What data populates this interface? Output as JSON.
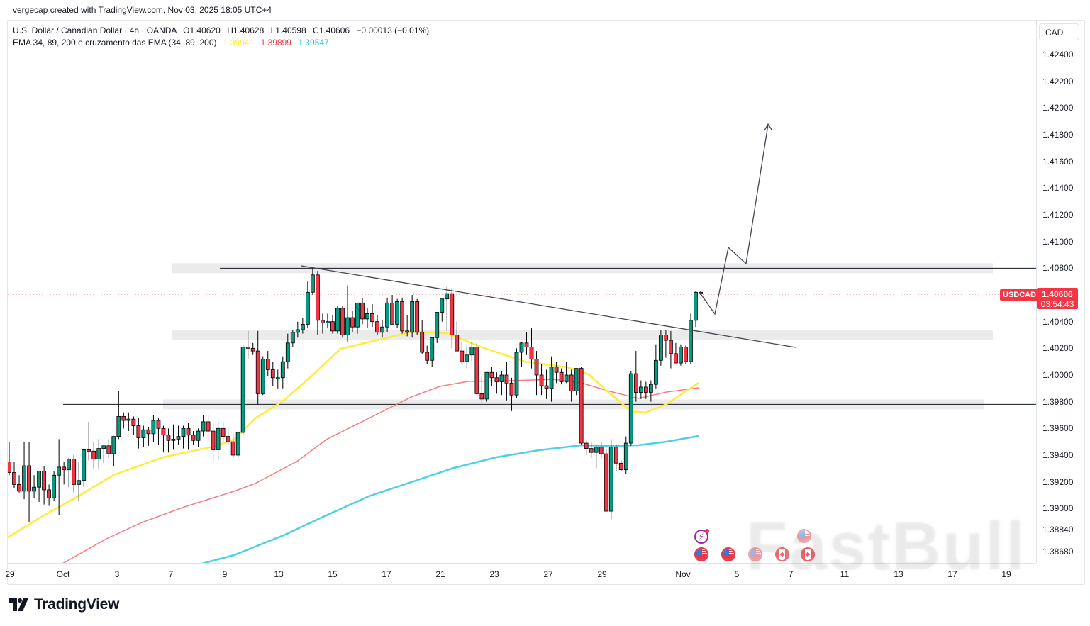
{
  "credit": "vergecap created with TradingView.com, Nov 03, 2025 18:05 UTC+4",
  "legend": {
    "symbol_line": "U.S. Dollar / Canadian Dollar · 4h · OANDA",
    "open_label": "O",
    "open": "1.40620",
    "high_label": "H",
    "high": "1.40628",
    "low_label": "L",
    "low": "1.40598",
    "close_label": "C",
    "close": "1.40606",
    "change": "−0.00013 (−0.01%)",
    "indicator_name": "EMA 34, 89, 200 e cruzamento das EMA (34, 89, 200)",
    "ema34": "1.39941",
    "ema89": "1.39899",
    "ema200": "1.39547"
  },
  "price_axis": {
    "currency": "CAD",
    "ticks": [
      "1.42400",
      "1.42200",
      "1.42000",
      "1.41800",
      "1.41600",
      "1.41400",
      "1.41200",
      "1.41000",
      "1.40800",
      "1.40400",
      "1.40200",
      "1.40000",
      "1.39800",
      "1.39600",
      "1.39400",
      "1.39200",
      "1.39000",
      "1.38840",
      "1.38680"
    ],
    "last_price": "1.40606",
    "countdown": "03:54:43",
    "symbol_tag": "USDCAD"
  },
  "time_axis": {
    "ticks": [
      "29",
      "Oct",
      "3",
      "7",
      "9",
      "13",
      "15",
      "17",
      "21",
      "23",
      "27",
      "29",
      "Nov",
      "5",
      "7",
      "11",
      "13",
      "17",
      "19"
    ]
  },
  "brand": "TradingView",
  "watermark": "FastBull",
  "colors": {
    "up": "#089981",
    "down": "#f23645",
    "ema34": "#ffeb3b",
    "ema89": "#f77c80",
    "ema200": "#4dd0e1",
    "zone": "#ebebeb",
    "drawing": "#131722"
  },
  "chart_data": {
    "type": "candlestick",
    "title": "U.S. Dollar / Canadian Dollar · 4h · OANDA",
    "symbol": "USDCAD",
    "timeframe": "4h",
    "xlabel": "",
    "ylabel": "CAD",
    "ylim": [
      1.3862,
      1.4258
    ],
    "x_ticks": [
      "29",
      "Oct",
      "3",
      "7",
      "9",
      "13",
      "15",
      "17",
      "21",
      "23",
      "27",
      "29",
      "Nov",
      "5",
      "7",
      "11",
      "13",
      "17",
      "19"
    ],
    "y_ticks": [
      1.424,
      1.422,
      1.42,
      1.418,
      1.416,
      1.414,
      1.412,
      1.41,
      1.408,
      1.404,
      1.402,
      1.4,
      1.398,
      1.396,
      1.394,
      1.392,
      1.39,
      1.3884,
      1.3868
    ],
    "grid": false,
    "last_price": 1.40606,
    "ohlc_last": {
      "open": 1.4062,
      "high": 1.40628,
      "low": 1.40598,
      "close": 1.40606,
      "change": -0.00013,
      "change_pct": -0.01
    },
    "ema_values": {
      "ema34": 1.39941,
      "ema89": 1.39899,
      "ema200": 1.39547
    },
    "candles_note": "Approximate OHLC read from pixels, oldest to newest (4h bars, late Sep to Nov 3)",
    "candles": [
      [
        1.3935,
        1.395,
        1.3925,
        1.3927
      ],
      [
        1.3927,
        1.3935,
        1.3915,
        1.3918
      ],
      [
        1.3918,
        1.3925,
        1.3912,
        1.3913
      ],
      [
        1.3913,
        1.395,
        1.3907,
        1.3932
      ],
      [
        1.3932,
        1.395,
        1.389,
        1.3913
      ],
      [
        1.3913,
        1.3925,
        1.3908,
        1.3916
      ],
      [
        1.3916,
        1.3922,
        1.3905,
        1.3928
      ],
      [
        1.3928,
        1.3932,
        1.3903,
        1.3914
      ],
      [
        1.3914,
        1.3918,
        1.3902,
        1.3908
      ],
      [
        1.3908,
        1.3928,
        1.3906,
        1.3925
      ],
      [
        1.3925,
        1.3952,
        1.3895,
        1.3931
      ],
      [
        1.3931,
        1.3935,
        1.3918,
        1.3929
      ],
      [
        1.3929,
        1.3938,
        1.3916,
        1.3937
      ],
      [
        1.3937,
        1.394,
        1.3912,
        1.3918
      ],
      [
        1.3918,
        1.3935,
        1.3906,
        1.3921
      ],
      [
        1.3921,
        1.3945,
        1.3916,
        1.3944
      ],
      [
        1.3944,
        1.3965,
        1.3936,
        1.3943
      ],
      [
        1.3943,
        1.395,
        1.393,
        1.3937
      ],
      [
        1.3937,
        1.3952,
        1.393,
        1.3945
      ],
      [
        1.3945,
        1.3948,
        1.3934,
        1.3947
      ],
      [
        1.3947,
        1.3952,
        1.3938,
        1.3941
      ],
      [
        1.3941,
        1.3953,
        1.3932,
        1.3954
      ],
      [
        1.3954,
        1.3988,
        1.3952,
        1.3969
      ],
      [
        1.3969,
        1.3972,
        1.396,
        1.3966
      ],
      [
        1.3966,
        1.3972,
        1.3958,
        1.3967
      ],
      [
        1.3967,
        1.3969,
        1.3955,
        1.3962
      ],
      [
        1.3962,
        1.3968,
        1.3945,
        1.3953
      ],
      [
        1.3953,
        1.3962,
        1.3946,
        1.3959
      ],
      [
        1.3959,
        1.3961,
        1.3947,
        1.3956
      ],
      [
        1.3956,
        1.397,
        1.395,
        1.3966
      ],
      [
        1.3966,
        1.3968,
        1.3948,
        1.396
      ],
      [
        1.396,
        1.3962,
        1.3942,
        1.3955
      ],
      [
        1.3955,
        1.396,
        1.3942,
        1.3951
      ],
      [
        1.3951,
        1.3963,
        1.3944,
        1.3952
      ],
      [
        1.3952,
        1.3962,
        1.3948,
        1.3954
      ],
      [
        1.3954,
        1.3962,
        1.3945,
        1.396
      ],
      [
        1.396,
        1.3964,
        1.3944,
        1.3955
      ],
      [
        1.3955,
        1.3958,
        1.3948,
        1.3951
      ],
      [
        1.3951,
        1.396,
        1.3946,
        1.3958
      ],
      [
        1.3958,
        1.397,
        1.3954,
        1.3965
      ],
      [
        1.3965,
        1.397,
        1.395,
        1.3958
      ],
      [
        1.3958,
        1.3963,
        1.3936,
        1.3944
      ],
      [
        1.3944,
        1.3965,
        1.3936,
        1.396
      ],
      [
        1.396,
        1.3965,
        1.395,
        1.3954
      ],
      [
        1.3954,
        1.396,
        1.3948,
        1.395
      ],
      [
        1.395,
        1.3956,
        1.3938,
        1.394
      ],
      [
        1.394,
        1.3958,
        1.3938,
        1.3957
      ],
      [
        1.3957,
        1.4023,
        1.3955,
        1.4021
      ],
      [
        1.4021,
        1.4033,
        1.4012,
        1.402
      ],
      [
        1.402,
        1.4024,
        1.4015,
        1.4018
      ],
      [
        1.4018,
        1.4033,
        1.3978,
        1.3986
      ],
      [
        1.3986,
        1.4014,
        1.3985,
        1.4012
      ],
      [
        1.4012,
        1.4018,
        1.3999,
        1.4004
      ],
      [
        1.4004,
        1.401,
        1.3992,
        1.3998
      ],
      [
        1.3998,
        1.4004,
        1.399,
        1.3998
      ],
      [
        1.3998,
        1.4014,
        1.399,
        1.401
      ],
      [
        1.401,
        1.4031,
        1.4005,
        1.4024
      ],
      [
        1.4024,
        1.4034,
        1.4021,
        1.4032
      ],
      [
        1.4032,
        1.404,
        1.4028,
        1.4034
      ],
      [
        1.4034,
        1.4043,
        1.4031,
        1.4038
      ],
      [
        1.4038,
        1.407,
        1.4035,
        1.4062
      ],
      [
        1.4062,
        1.408,
        1.406,
        1.4075
      ],
      [
        1.4075,
        1.4078,
        1.403,
        1.4041
      ],
      [
        1.4041,
        1.4046,
        1.4031,
        1.4039
      ],
      [
        1.4039,
        1.4046,
        1.4035,
        1.404
      ],
      [
        1.404,
        1.4045,
        1.4031,
        1.4033
      ],
      [
        1.4033,
        1.4052,
        1.4031,
        1.405
      ],
      [
        1.405,
        1.4052,
        1.4028,
        1.403
      ],
      [
        1.403,
        1.4067,
        1.4025,
        1.4043
      ],
      [
        1.4043,
        1.4048,
        1.4032,
        1.4036
      ],
      [
        1.4036,
        1.405,
        1.4031,
        1.4054
      ],
      [
        1.4054,
        1.4058,
        1.4038,
        1.4042
      ],
      [
        1.4042,
        1.405,
        1.4035,
        1.4046
      ],
      [
        1.4046,
        1.4053,
        1.4036,
        1.404
      ],
      [
        1.404,
        1.4045,
        1.403,
        1.4032
      ],
      [
        1.4032,
        1.4041,
        1.4028,
        1.4036
      ],
      [
        1.4036,
        1.4058,
        1.4032,
        1.4054
      ],
      [
        1.4054,
        1.406,
        1.404,
        1.4038
      ],
      [
        1.4038,
        1.4057,
        1.4035,
        1.4055
      ],
      [
        1.4055,
        1.4058,
        1.4031,
        1.4033
      ],
      [
        1.4033,
        1.4045,
        1.4029,
        1.4032
      ],
      [
        1.4032,
        1.406,
        1.4028,
        1.4055
      ],
      [
        1.4055,
        1.4057,
        1.403,
        1.4032
      ],
      [
        1.4032,
        1.4041,
        1.4016,
        1.4017
      ],
      [
        1.4017,
        1.4022,
        1.4008,
        1.4011
      ],
      [
        1.4011,
        1.4025,
        1.4006,
        1.4028
      ],
      [
        1.4028,
        1.404,
        1.4024,
        1.4047
      ],
      [
        1.4047,
        1.4055,
        1.404,
        1.4057
      ],
      [
        1.4057,
        1.4066,
        1.4033,
        1.4061
      ],
      [
        1.4061,
        1.4065,
        1.402,
        1.403
      ],
      [
        1.403,
        1.404,
        1.4023,
        1.4018
      ],
      [
        1.4018,
        1.4025,
        1.4008,
        1.401
      ],
      [
        1.401,
        1.4022,
        1.4005,
        1.4015
      ],
      [
        1.4015,
        1.4025,
        1.401,
        1.4021
      ],
      [
        1.4021,
        1.4024,
        1.3985,
        1.3986
      ],
      [
        1.3986,
        1.3999,
        1.3979,
        1.3982
      ],
      [
        1.3982,
        1.3999,
        1.398,
        1.4002
      ],
      [
        1.4002,
        1.4006,
        1.3992,
        1.3998
      ],
      [
        1.3998,
        1.4002,
        1.3986,
        1.3995
      ],
      [
        1.3995,
        1.4003,
        1.3985,
        1.4
      ],
      [
        1.4,
        1.401,
        1.3981,
        1.3994
      ],
      [
        1.3994,
        1.3998,
        1.3973,
        1.3985
      ],
      [
        1.3985,
        1.402,
        1.3983,
        1.4017
      ],
      [
        1.4017,
        1.4025,
        1.4006,
        1.4024
      ],
      [
        1.4024,
        1.4032,
        1.4015,
        1.4021
      ],
      [
        1.4021,
        1.4035,
        1.4005,
        1.4012
      ],
      [
        1.4012,
        1.4018,
        1.3985,
        1.4
      ],
      [
        1.4,
        1.4008,
        1.3985,
        1.3992
      ],
      [
        1.3992,
        1.4004,
        1.3982,
        1.399
      ],
      [
        1.399,
        1.4014,
        1.398,
        1.4006
      ],
      [
        1.4006,
        1.401,
        1.3994,
        1.4002
      ],
      [
        1.4002,
        1.4005,
        1.3993,
        1.3995
      ],
      [
        1.3995,
        1.401,
        1.3994,
        1.4
      ],
      [
        1.4,
        1.4004,
        1.398,
        1.3988
      ],
      [
        1.3988,
        1.4003,
        1.3985,
        1.4005
      ],
      [
        1.4005,
        1.4006,
        1.3948,
        1.3949
      ],
      [
        1.3949,
        1.3951,
        1.394,
        1.3945
      ],
      [
        1.3945,
        1.395,
        1.3938,
        1.3942
      ],
      [
        1.3942,
        1.3948,
        1.393,
        1.3946
      ],
      [
        1.3946,
        1.395,
        1.3938,
        1.3941
      ],
      [
        1.3941,
        1.3945,
        1.39,
        1.3898
      ],
      [
        1.3898,
        1.3952,
        1.3892,
        1.3946
      ],
      [
        1.3946,
        1.3948,
        1.3928,
        1.3934
      ],
      [
        1.3934,
        1.3936,
        1.3928,
        1.3929
      ],
      [
        1.3929,
        1.3954,
        1.3926,
        1.3949
      ],
      [
        1.3949,
        1.4003,
        1.3947,
        1.4001
      ],
      [
        1.4001,
        1.4018,
        1.398,
        1.3987
      ],
      [
        1.3987,
        1.3996,
        1.3982,
        1.3991
      ],
      [
        1.3991,
        1.3995,
        1.3982,
        1.3987
      ],
      [
        1.3987,
        1.3996,
        1.398,
        1.3993
      ],
      [
        1.3993,
        1.4023,
        1.399,
        1.4011
      ],
      [
        1.4011,
        1.4034,
        1.4007,
        1.403
      ],
      [
        1.403,
        1.4034,
        1.4013,
        1.4026
      ],
      [
        1.4026,
        1.4033,
        1.4005,
        1.4016
      ],
      [
        1.4016,
        1.4024,
        1.401,
        1.4009
      ],
      [
        1.4009,
        1.4023,
        1.4007,
        1.4021
      ],
      [
        1.4021,
        1.4022,
        1.4008,
        1.401
      ],
      [
        1.401,
        1.4046,
        1.4008,
        1.4041
      ],
      [
        1.4041,
        1.4063,
        1.4036,
        1.4062
      ],
      [
        1.4062,
        1.4063,
        1.406,
        1.4061
      ]
    ],
    "ema_series": {
      "ema34_color": "#ffeb3b",
      "ema89_color": "#f77c80",
      "ema200_color": "#4dd0e1"
    },
    "horizontal_levels": [
      1.408,
      1.403,
      1.3978
    ],
    "support_resistance_zones": [
      {
        "center": 1.408,
        "from_x": "Oct 13",
        "to_x": "Nov 19"
      },
      {
        "center": 1.403,
        "from_x": "Oct 13",
        "to_x": "Nov 19"
      },
      {
        "center": 1.3978,
        "from_x": "Oct 9",
        "to_x": "Nov 19"
      }
    ],
    "trendline": {
      "from": [
        1.4081,
        "Oct 14"
      ],
      "to": [
        1.4019,
        "Nov 7"
      ]
    },
    "projection_path": [
      1.40606,
      1.4045,
      1.4096,
      1.4084,
      1.419
    ],
    "annotations": [
      "Descending trendline breakout",
      "Projected path arrow up to ~1.4190"
    ]
  }
}
